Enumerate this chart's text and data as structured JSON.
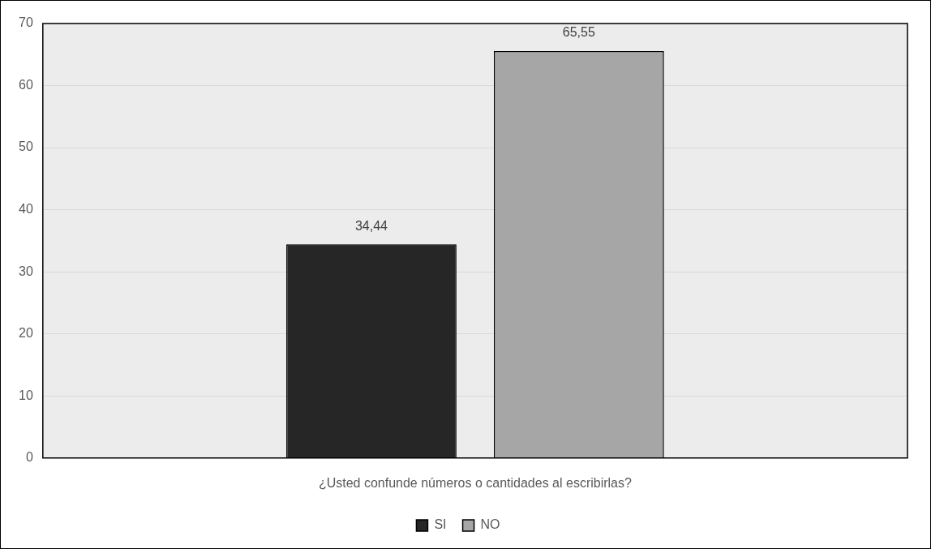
{
  "chart_data": {
    "type": "bar",
    "categories": [
      "¿Usted confunde números o cantidades al escribirlas?"
    ],
    "series": [
      {
        "name": "SI",
        "color": "#262626",
        "values": [
          34.44
        ],
        "value_labels": [
          "34,44"
        ]
      },
      {
        "name": "NO",
        "color": "#a6a6a6",
        "values": [
          65.55
        ],
        "value_labels": [
          "65,55"
        ]
      }
    ],
    "ylim": [
      0,
      70
    ],
    "yticks": [
      0,
      10,
      20,
      30,
      40,
      50,
      60,
      70
    ],
    "grid": "y",
    "legend": "bottom"
  }
}
